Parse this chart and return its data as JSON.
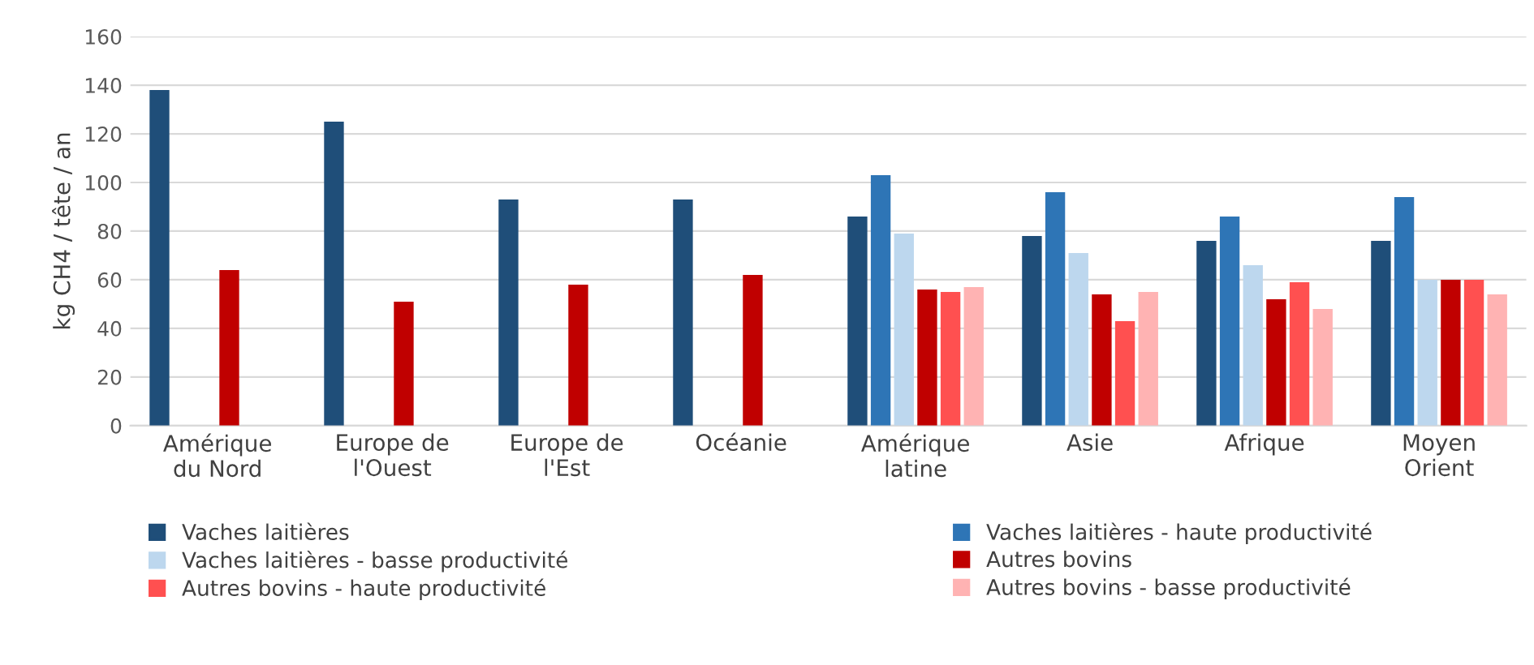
{
  "chart_data": {
    "type": "bar",
    "ylabel": "kg CH4 / tête / an",
    "categories": [
      "Amérique\ndu Nord",
      "Europe de\nl'Ouest",
      "Europe de\nl'Est",
      "Océanie",
      "Amérique\nlatine",
      "Asie",
      "Afrique",
      "Moyen\nOrient"
    ],
    "series": [
      {
        "name": "Vaches laitières",
        "color": "#1f4e79",
        "values": [
          138,
          125,
          93,
          93,
          86,
          78,
          76,
          76
        ]
      },
      {
        "name": "Vaches laitières - haute productivité",
        "color": "#2e75b6",
        "values": [
          null,
          null,
          null,
          null,
          103,
          96,
          86,
          94
        ]
      },
      {
        "name": "Vaches laitières - basse productivité",
        "color": "#bdd7ee",
        "values": [
          null,
          null,
          null,
          null,
          79,
          71,
          66,
          60
        ]
      },
      {
        "name": "Autres bovins",
        "color": "#c00000",
        "values": [
          64,
          51,
          58,
          62,
          56,
          54,
          52,
          60
        ]
      },
      {
        "name": "Autres bovins - haute productivité",
        "color": "#ff5050",
        "values": [
          null,
          null,
          null,
          null,
          55,
          43,
          59,
          60
        ]
      },
      {
        "name": "Autres bovins - basse productivité",
        "color": "#ffb3b3",
        "values": [
          null,
          null,
          null,
          null,
          57,
          55,
          48,
          54
        ]
      }
    ],
    "ylim": [
      0,
      160
    ],
    "yticks": [
      0,
      20,
      40,
      60,
      80,
      100,
      120,
      140,
      160
    ],
    "grid": "y",
    "legend": "bottom"
  }
}
